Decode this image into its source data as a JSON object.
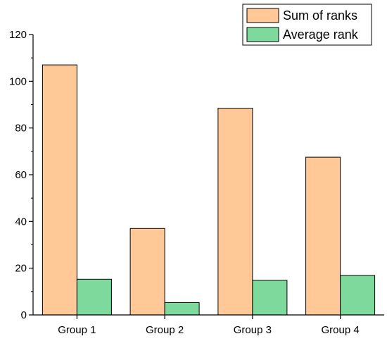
{
  "chart_data": {
    "type": "bar",
    "categories": [
      "Group 1",
      "Group 2",
      "Group 3",
      "Group 4"
    ],
    "series": [
      {
        "name": "Sum of ranks",
        "values": [
          107,
          37,
          88.5,
          67.5
        ],
        "color": "#FFC896"
      },
      {
        "name": "Average rank",
        "values": [
          15.3,
          5.3,
          14.8,
          16.9
        ],
        "color": "#7DDA9C"
      }
    ],
    "title": "",
    "xlabel": "",
    "ylabel": "",
    "ylim": [
      0,
      120
    ],
    "yticks": [
      "0",
      "20",
      "40",
      "60",
      "80",
      "100",
      "120"
    ],
    "grid": false,
    "legend_position": "top-right",
    "colors": {
      "sum_of_ranks": "#FFC896",
      "average_rank": "#7DDA9C",
      "axis": "#000000"
    }
  }
}
